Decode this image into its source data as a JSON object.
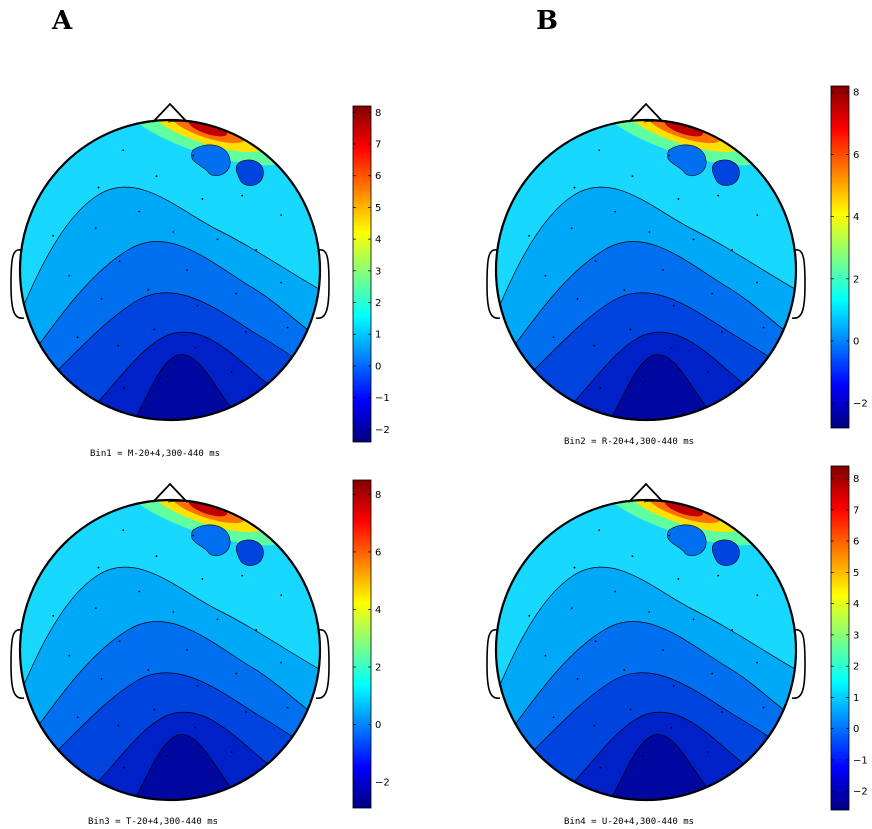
{
  "figure": {
    "panel_labels": [
      "A",
      "B"
    ],
    "colormap": [
      "#00007f",
      "#0000ff",
      "#0080ff",
      "#00ffff",
      "#80ff80",
      "#ffff00",
      "#ff8000",
      "#ff0000",
      "#800000"
    ],
    "plots": [
      {
        "caption": "Bin1 = M-20+4,300-440 ms",
        "colorbar": {
          "min": -2.4,
          "max": 8.2,
          "ticks": [
            "8",
            "7",
            "6",
            "5",
            "4",
            "3",
            "2",
            "1",
            "0",
            "−1",
            "−2"
          ],
          "tick_values": [
            8,
            7,
            6,
            5,
            4,
            3,
            2,
            1,
            0,
            -1,
            -2
          ]
        }
      },
      {
        "caption": "Bin2 = R-20+4,300-440 ms",
        "colorbar": {
          "min": -2.8,
          "max": 8.2,
          "ticks": [
            "8",
            "6",
            "4",
            "2",
            "0",
            "−2"
          ],
          "tick_values": [
            8,
            6,
            4,
            2,
            0,
            -2
          ]
        }
      },
      {
        "caption": "Bin3 = T-20+4,300-440 ms",
        "colorbar": {
          "min": -2.9,
          "max": 8.5,
          "ticks": [
            "8",
            "6",
            "4",
            "2",
            "0",
            "−2"
          ],
          "tick_values": [
            8,
            6,
            4,
            2,
            0,
            -2
          ]
        }
      },
      {
        "caption": "Bin4 = U-20+4,300-440 ms",
        "colorbar": {
          "min": -2.6,
          "max": 8.4,
          "ticks": [
            "8",
            "7",
            "6",
            "5",
            "4",
            "3",
            "2",
            "1",
            "0",
            "−1",
            "−2"
          ],
          "tick_values": [
            8,
            7,
            6,
            5,
            4,
            3,
            2,
            1,
            0,
            -1,
            -2
          ]
        }
      }
    ]
  }
}
